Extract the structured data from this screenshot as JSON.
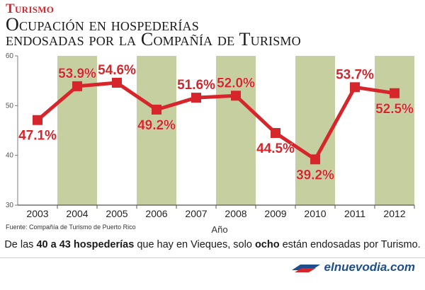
{
  "header": {
    "section": "Turismo",
    "title_line1": "Ocupación en hospederías",
    "title_line2": "endosadas por la Compañía de Turismo"
  },
  "chart_data": {
    "type": "line",
    "x": [
      "2003",
      "2004",
      "2005",
      "2006",
      "2007",
      "2008",
      "2009",
      "2010",
      "2011",
      "2012"
    ],
    "series": [
      {
        "values": [
          47.1,
          53.9,
          54.6,
          49.2,
          51.6,
          52.0,
          44.5,
          39.2,
          53.7,
          52.5
        ],
        "labels": [
          "47.1%",
          "53.9%",
          "54.6%",
          "49.2%",
          "51.6%",
          "52.0%",
          "44.5%",
          "39.2%",
          "53.7%",
          "52.5%"
        ]
      }
    ],
    "xlabel": "Año",
    "ylabel": "",
    "ylim": [
      30,
      60
    ],
    "yticks": [
      "30",
      "40",
      "50",
      "60"
    ],
    "label_positions": [
      "below",
      "above",
      "above",
      "below",
      "above",
      "above",
      "below",
      "below",
      "above",
      "below"
    ],
    "shaded_columns": [
      "2004",
      "2006",
      "2008",
      "2010",
      "2012"
    ],
    "colors": {
      "line": "#d7262b",
      "band": "#c5cf9f",
      "text": "#d7262b"
    }
  },
  "source": "Fuente: Compañía de Turismo de Puerto Rico",
  "summary": {
    "p1": "De las ",
    "b1": "40 a 43 hospederías",
    "p2": " que hay en Vieques, solo ",
    "b2": "ocho",
    "p3": " están endosadas por Turismo."
  },
  "brand": {
    "name": "elnuevodia.com",
    "logo": "elnuevodia-logo",
    "color": "#1f4e8c"
  }
}
